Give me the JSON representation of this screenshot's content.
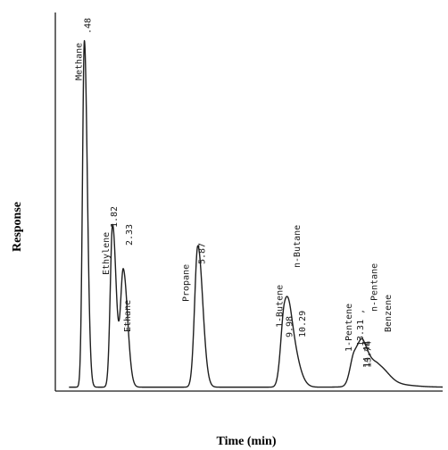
{
  "chart_data": {
    "type": "line",
    "title": "",
    "xlabel": "Time (min)",
    "ylabel": "Response",
    "xlim": [
      -0.9,
      17.5
    ],
    "ylim": [
      0,
      100
    ],
    "grid": false,
    "legend": "none",
    "peaks": [
      {
        "compound": "Methane",
        "time": 0.48,
        "height": 98,
        "width": 0.09,
        "time_text": ".48"
      },
      {
        "compound": "Ethylene",
        "time": 1.82,
        "height": 46,
        "width": 0.11,
        "time_text": "1.82"
      },
      {
        "compound": "Ethane",
        "time": 2.33,
        "height": 33,
        "width": 0.13,
        "time_text": "2.33"
      },
      {
        "compound": "Propane",
        "time": 5.87,
        "height": 40,
        "width": 0.15,
        "time_text": "5.87"
      },
      {
        "compound": "1-Butene",
        "time": 9.98,
        "height": 19,
        "width": 0.17,
        "time_text": "9.98"
      },
      {
        "compound": "n-Butane",
        "time": 10.29,
        "height": 12,
        "width": 0.23,
        "time_text": "10.29"
      },
      {
        "compound": "1-Pentene",
        "time": 13.31,
        "height": 9,
        "width": 0.2,
        "time_text": "13.31 ,"
      },
      {
        "compound": "n-Pentane",
        "time": 13.74,
        "height": 9,
        "width": 0.21,
        "time_text": "13.74"
      },
      {
        "compound": "Benzene",
        "time": 14.44,
        "height": 5,
        "width": 0.3,
        "time_text": "14.44"
      }
    ]
  }
}
